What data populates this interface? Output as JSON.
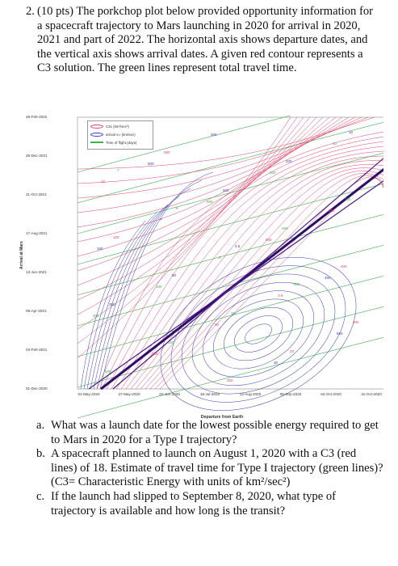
{
  "intro": {
    "number": "2.",
    "text": "(10 pts) The porkchop plot below provided opportunity information for a spacecraft trajectory to Mars launching in 2020 for arrival in 2020, 2021 and part of 2022. The horizontal axis shows departure dates, and the vertical axis shows arrival dates. A given red contour represents a C3 solution. The green lines represent total travel time."
  },
  "plot": {
    "y_axis_title": "Arrival at Mars",
    "x_axis_title": "Departure from Earth",
    "y_ticks": [
      "28-Feb-2022",
      "25-Dec-2021",
      "21-Oct-2021",
      "17-Aug-2021",
      "13-Jun-2021",
      "09-Apr-2021",
      "03-Feb-2021",
      "01-Dec-2020"
    ],
    "x_ticks": [
      "01-May-2020",
      "27-May-2020",
      "22-Jun-2020",
      "18-Jul-2020",
      "13-Aug-2020",
      "08-Sep-2020",
      "04-Oct-2020",
      "31-Oct-2020"
    ],
    "legend": [
      {
        "label": "C3L (km²/sec²)",
        "color": "#e0406a"
      },
      {
        "label": "arrival v∞ (km/sec)",
        "color": "#3a3ab8"
      },
      {
        "label": "Time of flight (days)",
        "color": "#3cb04a"
      }
    ],
    "colors": {
      "c3": "#e0406a",
      "vinf": "#3a3ab8",
      "tof": "#3cb04a",
      "ridge": "#4b1b8c"
    },
    "contour_labels": [
      "650",
      "600",
      "550",
      "500",
      "450",
      "400",
      "350",
      "300",
      "250",
      "200",
      "150",
      "100",
      "50",
      "30",
      "20",
      "10",
      "7",
      "5",
      "3.5"
    ]
  },
  "parts": [
    {
      "letter": "a.",
      "text": "What was a launch date for the lowest possible energy required to get to Mars in 2020 for a Type I trajectory?"
    },
    {
      "letter": "b.",
      "text": "A spacecraft planned to launch on August 1, 2020 with a C3 (red lines) of 18. Estimate of travel time for Type I trajectory (green lines)? (C3= Characteristic Energy with units of km²/sec²)"
    },
    {
      "letter": "c.",
      "text": "If the launch had slipped to September 8, 2020, what type of trajectory is available and how long is the transit?"
    }
  ]
}
